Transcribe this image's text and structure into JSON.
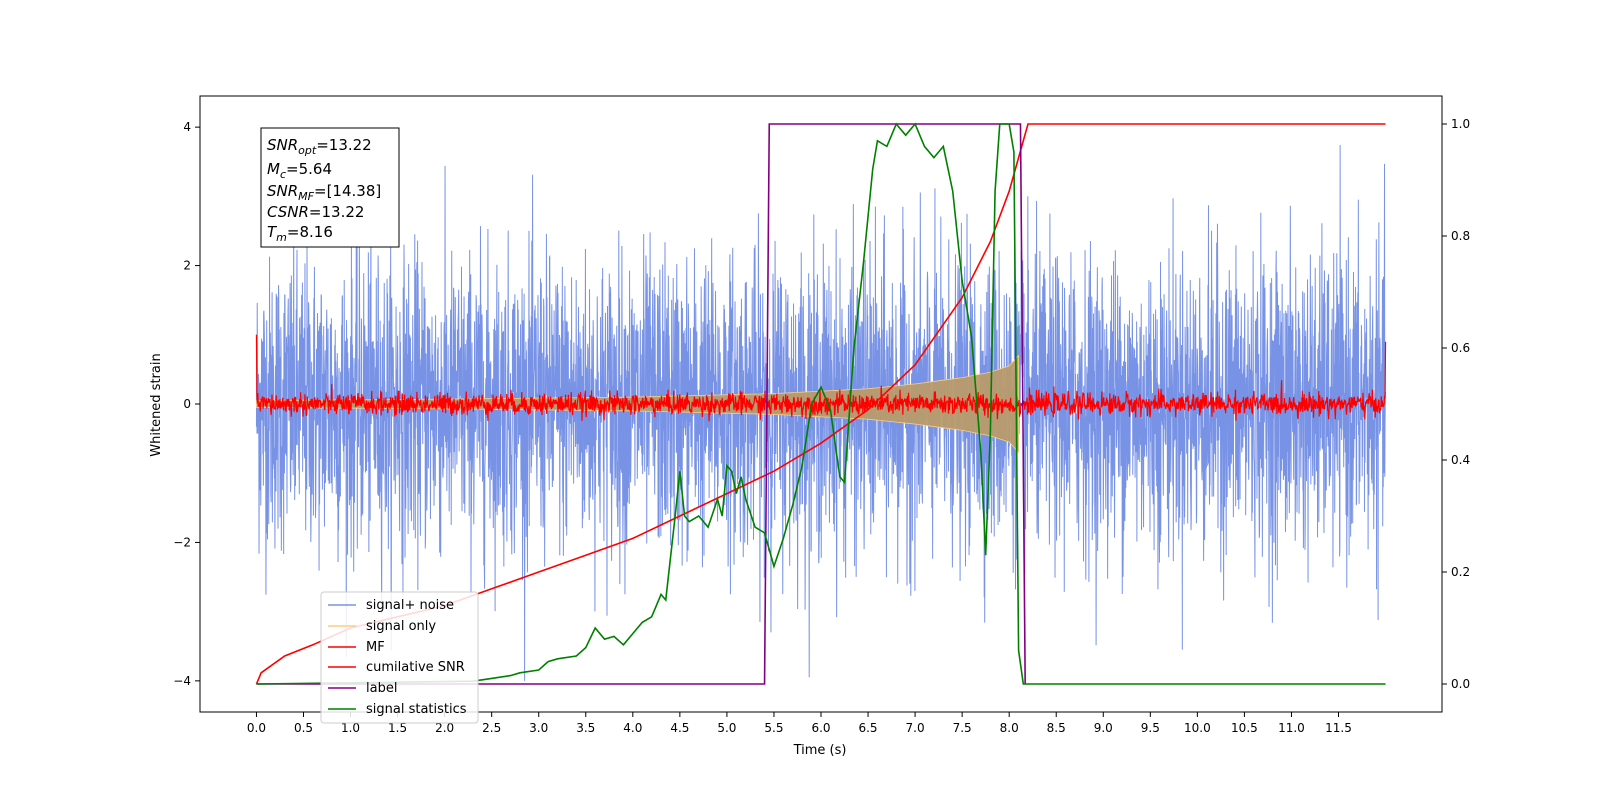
{
  "chart_data": {
    "type": "line",
    "xlabel": "Time (s)",
    "ylabel": "Whitened strain",
    "xlim": [
      -0.6,
      12.6
    ],
    "ylim": [
      -4.45,
      4.45
    ],
    "y2lim": [
      -0.05,
      1.05
    ],
    "x_ticks": [
      "0.0",
      "0.5",
      "1.0",
      "1.5",
      "2.0",
      "2.5",
      "3.0",
      "3.5",
      "4.0",
      "4.5",
      "5.0",
      "5.5",
      "6.0",
      "6.5",
      "7.0",
      "7.5",
      "8.0",
      "8.5",
      "9.0",
      "9.5",
      "10.0",
      "10.5",
      "11.0",
      "11.5"
    ],
    "y_ticks": [
      "4",
      "2",
      "0",
      "−2",
      "−4"
    ],
    "y2_ticks": [
      "1.0",
      "0.8",
      "0.6",
      "0.4",
      "0.2",
      "0.0"
    ],
    "grid": false,
    "legend_position": "lower-left",
    "series": [
      {
        "name": "signal+ noise",
        "color": "#7893e6",
        "axis": "left",
        "description_range": [
          -4.0,
          4.0
        ],
        "x_range": [
          0.0,
          12.0
        ]
      },
      {
        "name": "signal only",
        "color": "#ffcc80",
        "axis": "left",
        "envelope": {
          "x": [
            0,
            2,
            4,
            5.5,
            6.5,
            7.0,
            7.5,
            7.8,
            8.0,
            8.1
          ],
          "amp": [
            0.05,
            0.07,
            0.1,
            0.15,
            0.22,
            0.29,
            0.38,
            0.46,
            0.55,
            0.7
          ]
        }
      },
      {
        "name": "MF",
        "color": "#ff0000",
        "axis": "left",
        "noise_level": 0.08
      },
      {
        "name": "cumilative SNR",
        "color": "#ff0000",
        "axis": "right",
        "x": [
          0.0,
          0.05,
          0.3,
          0.6,
          1.0,
          1.5,
          2.0,
          2.5,
          3.0,
          3.5,
          4.0,
          4.5,
          5.0,
          5.5,
          6.0,
          6.5,
          7.0,
          7.5,
          7.8,
          8.0,
          8.1,
          8.2,
          12.0
        ],
        "y": [
          0.0,
          0.02,
          0.05,
          0.07,
          0.1,
          0.12,
          0.14,
          0.17,
          0.2,
          0.23,
          0.26,
          0.3,
          0.34,
          0.38,
          0.43,
          0.49,
          0.57,
          0.69,
          0.79,
          0.88,
          0.94,
          1.0,
          1.0
        ]
      },
      {
        "name": "label",
        "color": "#800080",
        "axis": "right",
        "x": [
          0.0,
          5.4,
          5.45,
          8.12,
          8.17,
          8.17
        ],
        "y": [
          0.0,
          0.0,
          1.0,
          1.0,
          0.0,
          0.0
        ]
      },
      {
        "name": "signal statistics",
        "color": "#008000",
        "axis": "right",
        "x": [
          0.0,
          2.3,
          2.5,
          2.7,
          2.8,
          3.0,
          3.1,
          3.2,
          3.4,
          3.5,
          3.6,
          3.7,
          3.8,
          3.9,
          4.0,
          4.1,
          4.2,
          4.3,
          4.35,
          4.45,
          4.5,
          4.55,
          4.6,
          4.7,
          4.8,
          4.9,
          4.95,
          5.0,
          5.05,
          5.1,
          5.15,
          5.2,
          5.3,
          5.4,
          5.5,
          5.6,
          5.7,
          5.8,
          5.9,
          6.0,
          6.1,
          6.2,
          6.25,
          6.35,
          6.45,
          6.55,
          6.6,
          6.7,
          6.8,
          6.9,
          7.0,
          7.1,
          7.2,
          7.3,
          7.4,
          7.5,
          7.6,
          7.7,
          7.75,
          7.8,
          7.85,
          7.9,
          8.0,
          8.05,
          8.1,
          8.15,
          8.2,
          12.0
        ],
        "y": [
          0.0,
          0.005,
          0.01,
          0.015,
          0.02,
          0.025,
          0.04,
          0.045,
          0.05,
          0.065,
          0.1,
          0.08,
          0.085,
          0.07,
          0.09,
          0.11,
          0.12,
          0.16,
          0.15,
          0.3,
          0.38,
          0.3,
          0.29,
          0.3,
          0.28,
          0.33,
          0.3,
          0.39,
          0.38,
          0.34,
          0.37,
          0.33,
          0.28,
          0.27,
          0.21,
          0.26,
          0.32,
          0.39,
          0.5,
          0.53,
          0.49,
          0.37,
          0.36,
          0.6,
          0.75,
          0.92,
          0.97,
          0.96,
          1.0,
          0.98,
          1.0,
          0.96,
          0.94,
          0.96,
          0.88,
          0.72,
          0.62,
          0.41,
          0.23,
          0.45,
          0.88,
          1.0,
          1.0,
          0.95,
          0.06,
          0.0,
          0.0,
          0.0
        ]
      }
    ]
  },
  "info_box": {
    "snr_opt": "=13.22",
    "mc": "=5.64",
    "snr_mf": "=[14.38]",
    "csnr": "=13.22",
    "tm": "=8.16"
  },
  "legend": [
    {
      "label": "signal+ noise",
      "color": "#7893e6"
    },
    {
      "label": "signal only",
      "color": "#ffcc80"
    },
    {
      "label": "MF",
      "color": "#ff0000"
    },
    {
      "label": "cumilative SNR",
      "color": "#ff0000"
    },
    {
      "label": "label",
      "color": "#800080"
    },
    {
      "label": "signal statistics",
      "color": "#008000"
    }
  ]
}
